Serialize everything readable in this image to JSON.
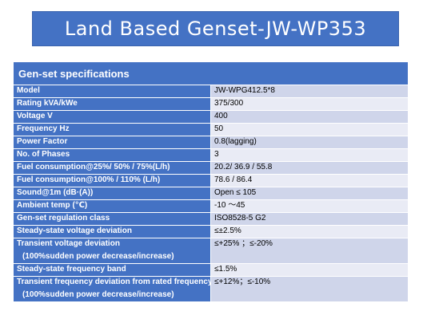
{
  "title": "Land Based Genset-JW-WP353",
  "table": {
    "header": "Gen-set specifications",
    "rows": [
      {
        "label": "Model",
        "value": "JW-WPG412.5*8"
      },
      {
        "label": "Rating   kVA/kWe",
        "value": "375/300"
      },
      {
        "label": "Voltage V",
        "value": "400"
      },
      {
        "label": "Frequency   Hz",
        "value": "50"
      },
      {
        "label": "Power Factor",
        "value": "0.8(lagging)"
      },
      {
        "label": "No. of Phases",
        "value": "3"
      },
      {
        "label": "Fuel consumption@25%/ 50% / 75%(L/h)",
        "value": "20.2/ 36.9 / 55.8"
      },
      {
        "label": "Fuel consumption@100% / 110%  (L/h)",
        "value": "78.6 / 86.4"
      },
      {
        "label": "Sound@1m  (dB·(A))",
        "value": "Open ≤ 105"
      },
      {
        "label": "Ambient temp  (℃)",
        "value": "-10 ～45"
      },
      {
        "label": "Gen-set regulation class",
        "value": "ISO8528-5    G2"
      },
      {
        "label": "Steady-state voltage deviation",
        "value": "≤±2.5%"
      },
      {
        "label": "Transient voltage deviation",
        "label2": "(100%sudden power decrease/increase)",
        "value": "≤+25%  ；≤-20%"
      },
      {
        "label": "Steady-state frequency band",
        "value": "≤1.5%"
      },
      {
        "label": "Transient frequency deviation from rated frequency",
        "label2": "(100%sudden power decrease/increase)",
        "value": "≤+12%；≤-10%"
      }
    ]
  }
}
